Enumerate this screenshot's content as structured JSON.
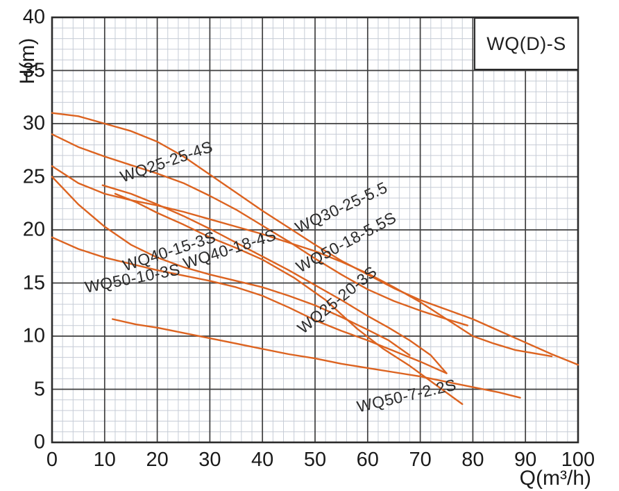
{
  "title_box": {
    "label": "WQ(D)-S"
  },
  "axes": {
    "x": {
      "label": "Q(m³/h)",
      "ticks": [
        0,
        10,
        20,
        30,
        40,
        50,
        60,
        70,
        80,
        90,
        100
      ]
    },
    "y": {
      "label": "H(m)",
      "ticks": [
        0,
        5,
        10,
        15,
        20,
        25,
        30,
        35,
        40
      ]
    }
  },
  "colors": {
    "curve": "#dc6320",
    "grid_minor": "#c6ccd6",
    "grid_major": "#3e3e3e",
    "axis": "#2b2b2b",
    "text": "#1a1a1a",
    "background": "#ffffff"
  },
  "chart_data": {
    "type": "line",
    "title": "WQ(D)-S",
    "xlabel": "Q(m³/h)",
    "ylabel": "H(m)",
    "xlim": [
      0,
      100
    ],
    "ylim": [
      0,
      40
    ],
    "x_major_step": 10,
    "x_minor_step": 2,
    "y_major_step": 5,
    "y_minor_step": 1,
    "grid": "on",
    "legend_position": "none",
    "series": [
      {
        "name": "WQ30-25-5.5",
        "label": {
          "q": 55.0,
          "h": 22.1,
          "rot": -25
        },
        "points": [
          [
            0,
            31
          ],
          [
            5,
            30.7
          ],
          [
            10,
            30
          ],
          [
            15,
            29.3
          ],
          [
            20,
            28.3
          ],
          [
            25,
            26.9
          ],
          [
            30,
            25.2
          ],
          [
            35,
            23.5
          ],
          [
            40,
            21.8
          ],
          [
            45,
            20.2
          ],
          [
            50,
            18.6
          ],
          [
            55,
            17.1
          ],
          [
            60,
            15.8
          ],
          [
            65,
            14.5
          ],
          [
            70,
            13.4
          ],
          [
            75,
            12.5
          ],
          [
            80,
            11.6
          ],
          [
            85,
            10.5
          ],
          [
            90,
            9.4
          ],
          [
            95,
            8.3
          ],
          [
            100,
            7.3
          ]
        ]
      },
      {
        "name": "WQ25-25-4S",
        "label": {
          "q": 21.8,
          "h": 26.4,
          "rot": -19
        },
        "points": [
          [
            0,
            29
          ],
          [
            5,
            27.8
          ],
          [
            10,
            26.9
          ],
          [
            15,
            26.1
          ],
          [
            20,
            25.3
          ],
          [
            25,
            24.4
          ],
          [
            30,
            23.2
          ],
          [
            35,
            21.9
          ],
          [
            40,
            20.4
          ],
          [
            45,
            18.9
          ],
          [
            50,
            17.3
          ],
          [
            55,
            15.8
          ],
          [
            60,
            14.4
          ],
          [
            65,
            13.3
          ],
          [
            70,
            12.4
          ],
          [
            75,
            11.6
          ],
          [
            79,
            11.0
          ]
        ]
      },
      {
        "name": "WQ50-18-5.5S",
        "label": {
          "q": 55.9,
          "h": 18.8,
          "rot": -28
        },
        "points": [
          [
            0,
            26
          ],
          [
            5,
            24.4
          ],
          [
            10,
            23.4
          ],
          [
            15,
            22.8
          ],
          [
            20,
            22.3
          ],
          [
            25,
            21.7
          ],
          [
            30,
            21.0
          ],
          [
            35,
            20.3
          ],
          [
            40,
            19.6
          ],
          [
            45,
            18.8
          ],
          [
            50,
            18.0
          ],
          [
            55,
            17.0
          ],
          [
            60,
            15.9
          ],
          [
            65,
            14.6
          ],
          [
            70,
            13.2
          ],
          [
            75,
            11.6
          ],
          [
            80,
            10.0
          ],
          [
            84,
            9.3
          ],
          [
            88,
            8.7
          ],
          [
            95,
            8.1
          ]
        ]
      },
      {
        "name": "WQ40-18-4S",
        "label": {
          "q": 33.8,
          "h": 18.2,
          "rot": -18
        },
        "points": [
          [
            9.6,
            24.2
          ],
          [
            15,
            23.4
          ],
          [
            20,
            22.4
          ],
          [
            25,
            21.3
          ],
          [
            30,
            20.1
          ],
          [
            35,
            18.8
          ],
          [
            40,
            17.5
          ],
          [
            45,
            16.2
          ],
          [
            50,
            14.8
          ],
          [
            55,
            13.4
          ],
          [
            60,
            11.9
          ],
          [
            64,
            10.8
          ],
          [
            68,
            9.6
          ],
          [
            72,
            8.2
          ],
          [
            75,
            6.5
          ]
        ]
      },
      {
        "name": "WQ40-15-3S",
        "label": {
          "q": 22.3,
          "h": 18.0,
          "rot": -18
        },
        "points": [
          [
            0,
            25
          ],
          [
            5,
            22.4
          ],
          [
            10,
            20.3
          ],
          [
            15,
            18.6
          ],
          [
            20,
            17.4
          ],
          [
            25,
            16.5
          ],
          [
            30,
            15.8
          ],
          [
            35,
            15.2
          ],
          [
            40,
            14.6
          ],
          [
            45,
            13.8
          ],
          [
            50,
            12.9
          ],
          [
            55,
            11.8
          ],
          [
            60,
            10.6
          ],
          [
            64,
            9.6
          ],
          [
            68,
            8.2
          ]
        ]
      },
      {
        "name": "WQ25-20-3S",
        "label": {
          "q": 54.2,
          "h": 13.4,
          "rot": -39
        },
        "points": [
          [
            12,
            23.4
          ],
          [
            16,
            22.6
          ],
          [
            20,
            21.6
          ],
          [
            25,
            20.5
          ],
          [
            30,
            19.3
          ],
          [
            35,
            18.3
          ],
          [
            40,
            17.2
          ],
          [
            46,
            15.5
          ],
          [
            52,
            13.4
          ],
          [
            58,
            10.7
          ],
          [
            63,
            8.8
          ],
          [
            68,
            7.2
          ],
          [
            73,
            5.4
          ],
          [
            78,
            3.6
          ]
        ]
      },
      {
        "name": "WQ50-10-3S",
        "label": {
          "q": 15.3,
          "h": 15.4,
          "rot": -11
        },
        "points": [
          [
            0,
            19.3
          ],
          [
            5,
            18.2
          ],
          [
            10,
            17.4
          ],
          [
            15,
            16.8
          ],
          [
            20,
            16.2
          ],
          [
            25,
            15.7
          ],
          [
            30,
            15.2
          ],
          [
            35,
            14.6
          ],
          [
            40,
            13.8
          ],
          [
            45,
            12.7
          ],
          [
            50,
            11.5
          ],
          [
            55,
            10.5
          ],
          [
            60,
            9.6
          ],
          [
            65,
            8.6
          ],
          [
            70,
            7.6
          ],
          [
            75,
            6.5
          ]
        ]
      },
      {
        "name": "WQ50-7-2.2S",
        "label": {
          "q": 67.4,
          "h": 4.4,
          "rot": -13
        },
        "points": [
          [
            11.5,
            11.6
          ],
          [
            16,
            11.1
          ],
          [
            20,
            10.8
          ],
          [
            25,
            10.3
          ],
          [
            30,
            9.8
          ],
          [
            35,
            9.3
          ],
          [
            40,
            8.8
          ],
          [
            45,
            8.3
          ],
          [
            50,
            7.9
          ],
          [
            55,
            7.4
          ],
          [
            60,
            7.0
          ],
          [
            65,
            6.6
          ],
          [
            70,
            6.2
          ],
          [
            75,
            5.7
          ],
          [
            80,
            5.2
          ],
          [
            85,
            4.7
          ],
          [
            89,
            4.2
          ]
        ]
      }
    ]
  }
}
